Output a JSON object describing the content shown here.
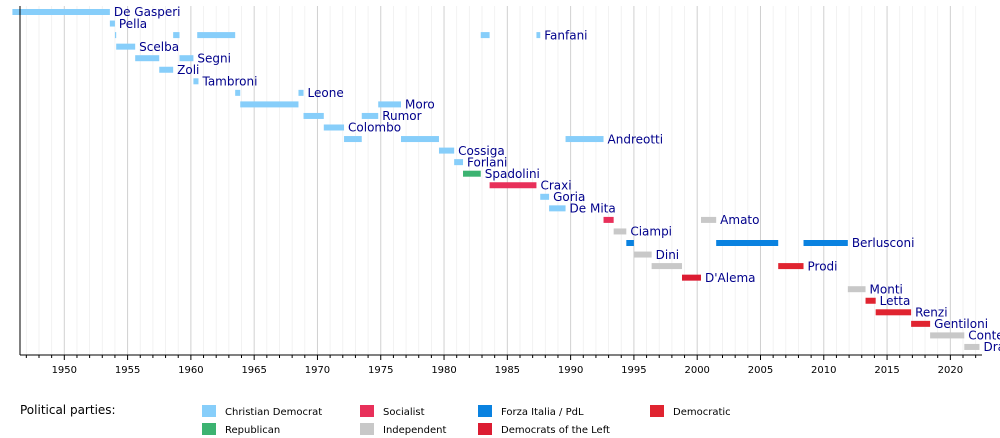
{
  "chart_data": {
    "type": "timeline",
    "title": "",
    "xlabel": "",
    "ylabel": "",
    "x_range": [
      1946.5,
      2022.5
    ],
    "x_ticks": [
      1950,
      1955,
      1960,
      1965,
      1970,
      1975,
      1980,
      1985,
      1990,
      1995,
      2000,
      2005,
      2010,
      2015,
      2020
    ],
    "grid": true,
    "parties": [
      {
        "key": "dc",
        "name": "Christian Democrat",
        "color": "#87CEFA"
      },
      {
        "key": "pri",
        "name": "Republican",
        "color": "#3CB371"
      },
      {
        "key": "psi",
        "name": "Socialist",
        "color": "#E8305A"
      },
      {
        "key": "ind",
        "name": "Independent",
        "color": "#C8C8C8"
      },
      {
        "key": "fi",
        "name": "Forza Italia / PdL",
        "color": "#0A82E0"
      },
      {
        "key": "ds",
        "name": "Democrats of the Left",
        "color": "#DC1C32"
      },
      {
        "key": "pd",
        "name": "Democratic",
        "color": "#E02430"
      }
    ],
    "legend_title": "Political parties:",
    "series": [
      {
        "name": "De Gasperi",
        "party": "dc",
        "terms": [
          [
            1945.9,
            1953.6
          ]
        ]
      },
      {
        "name": "Pella",
        "party": "dc",
        "terms": [
          [
            1953.6,
            1954.0
          ]
        ]
      },
      {
        "name": "Fanfani",
        "party": "dc",
        "terms": [
          [
            1954.0,
            1954.1
          ],
          [
            1958.6,
            1959.1
          ],
          [
            1960.5,
            1963.5
          ],
          [
            1982.9,
            1983.6
          ],
          [
            1987.3,
            1987.6
          ]
        ]
      },
      {
        "name": "Scelba",
        "party": "dc",
        "terms": [
          [
            1954.1,
            1955.6
          ]
        ]
      },
      {
        "name": "Segni",
        "party": "dc",
        "terms": [
          [
            1955.6,
            1957.5
          ],
          [
            1959.1,
            1960.2
          ]
        ]
      },
      {
        "name": "Zoli",
        "party": "dc",
        "terms": [
          [
            1957.5,
            1958.6
          ]
        ]
      },
      {
        "name": "Tambroni",
        "party": "dc",
        "terms": [
          [
            1960.2,
            1960.6
          ]
        ]
      },
      {
        "name": "Leone",
        "party": "dc",
        "terms": [
          [
            1963.5,
            1963.9
          ],
          [
            1968.5,
            1968.9
          ]
        ]
      },
      {
        "name": "Moro",
        "party": "dc",
        "terms": [
          [
            1963.9,
            1968.5
          ],
          [
            1974.8,
            1976.6
          ]
        ]
      },
      {
        "name": "Rumor",
        "party": "dc",
        "terms": [
          [
            1968.9,
            1970.5
          ],
          [
            1973.5,
            1974.8
          ]
        ]
      },
      {
        "name": "Colombo",
        "party": "dc",
        "terms": [
          [
            1970.5,
            1972.1
          ]
        ]
      },
      {
        "name": "Andreotti",
        "party": "dc",
        "terms": [
          [
            1972.1,
            1973.5
          ],
          [
            1976.6,
            1979.6
          ],
          [
            1989.6,
            1992.6
          ]
        ]
      },
      {
        "name": "Cossiga",
        "party": "dc",
        "terms": [
          [
            1979.6,
            1980.8
          ]
        ]
      },
      {
        "name": "Forlani",
        "party": "dc",
        "terms": [
          [
            1980.8,
            1981.5
          ]
        ]
      },
      {
        "name": "Spadolini",
        "party": "pri",
        "terms": [
          [
            1981.5,
            1982.9
          ]
        ]
      },
      {
        "name": "Craxi",
        "party": "psi",
        "terms": [
          [
            1983.6,
            1987.3
          ]
        ]
      },
      {
        "name": "Goria",
        "party": "dc",
        "terms": [
          [
            1987.6,
            1988.3
          ]
        ]
      },
      {
        "name": "De Mita",
        "party": "dc",
        "terms": [
          [
            1988.3,
            1989.6
          ]
        ]
      },
      {
        "name": "Amato",
        "party": "psi",
        "terms": [
          [
            1992.6,
            1993.4
          ]
        ]
      },
      {
        "name": "Amato",
        "party": "ind",
        "terms": [
          [
            2000.3,
            2001.5
          ]
        ],
        "row_label": true
      },
      {
        "name": "Ciampi",
        "party": "ind",
        "terms": [
          [
            1993.4,
            1994.4
          ]
        ]
      },
      {
        "name": "Berlusconi",
        "party": "fi",
        "terms": [
          [
            1994.4,
            1995.0
          ],
          [
            2001.5,
            2006.4
          ],
          [
            2008.4,
            2011.9
          ]
        ]
      },
      {
        "name": "Dini",
        "party": "ind",
        "terms": [
          [
            1995.0,
            1996.4
          ]
        ]
      },
      {
        "name": "Prodi",
        "party": "ind",
        "terms": [
          [
            1996.4,
            1998.8
          ]
        ]
      },
      {
        "name": "Prodi",
        "party": "pd",
        "terms": [
          [
            2006.4,
            2008.4
          ]
        ],
        "row_label": true
      },
      {
        "name": "D'Alema",
        "party": "ds",
        "terms": [
          [
            1998.8,
            2000.3
          ]
        ]
      },
      {
        "name": "Monti",
        "party": "ind",
        "terms": [
          [
            2011.9,
            2013.3
          ]
        ]
      },
      {
        "name": "Letta",
        "party": "pd",
        "terms": [
          [
            2013.3,
            2014.1
          ]
        ]
      },
      {
        "name": "Renzi",
        "party": "pd",
        "terms": [
          [
            2014.1,
            2016.9
          ]
        ]
      },
      {
        "name": "Gentiloni",
        "party": "pd",
        "terms": [
          [
            2016.9,
            2018.4
          ]
        ]
      },
      {
        "name": "Conte",
        "party": "ind",
        "terms": [
          [
            2018.4,
            2021.1
          ]
        ]
      },
      {
        "name": "Draghi",
        "party": "ind",
        "terms": [
          [
            2021.1,
            2022.3
          ]
        ]
      }
    ]
  }
}
